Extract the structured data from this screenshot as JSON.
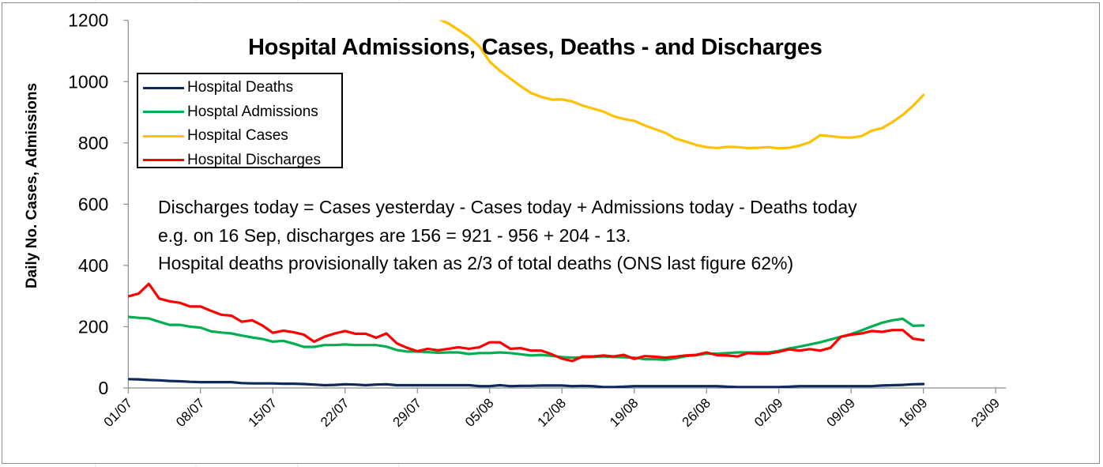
{
  "chart_data": {
    "type": "line",
    "title": "Hospital Admissions, Cases, Deaths - and Discharges",
    "xlabel": "",
    "ylabel": "Daily No. Cases, Admissions",
    "ylim": [
      0,
      1200
    ],
    "yticks": [
      0,
      200,
      400,
      600,
      800,
      1000,
      1200
    ],
    "xlim_days": [
      0,
      85
    ],
    "x_start_label": "01/07",
    "xtick_days": [
      0,
      7,
      14,
      21,
      28,
      35,
      42,
      49,
      56,
      63,
      70,
      77,
      84
    ],
    "xtick_labels": [
      "01/07",
      "08/07",
      "15/07",
      "22/07",
      "29/07",
      "05/08",
      "12/08",
      "19/08",
      "26/08",
      "02/09",
      "09/09",
      "16/09",
      "23/09"
    ],
    "grid": false,
    "legend_position": "top-left",
    "series": [
      {
        "name": "Hospital Deaths",
        "color": "#0e2a5c",
        "values": [
          29,
          28,
          26,
          25,
          23,
          22,
          20,
          19,
          19,
          19,
          19,
          16,
          15,
          15,
          15,
          14,
          14,
          13,
          11,
          9,
          10,
          12,
          11,
          9,
          11,
          12,
          9,
          9,
          9,
          9,
          9,
          9,
          9,
          9,
          6,
          6,
          9,
          6,
          7,
          7,
          8,
          8,
          8,
          6,
          7,
          6,
          3,
          3,
          4,
          6,
          6,
          6,
          6,
          6,
          6,
          6,
          6,
          6,
          4,
          3,
          3,
          3,
          3,
          3,
          4,
          6,
          6,
          6,
          6,
          6,
          6,
          6,
          6,
          8,
          9,
          10,
          12,
          13
        ]
      },
      {
        "name": "Hosptal Admissions",
        "color": "#00b050",
        "values": [
          232,
          229,
          227,
          216,
          206,
          206,
          200,
          197,
          185,
          181,
          178,
          171,
          165,
          160,
          151,
          154,
          145,
          134,
          134,
          140,
          140,
          142,
          140,
          140,
          140,
          135,
          124,
          119,
          119,
          117,
          115,
          116,
          116,
          111,
          114,
          114,
          116,
          114,
          110,
          106,
          108,
          105,
          101,
          99,
          100,
          101,
          103,
          101,
          100,
          99,
          94,
          94,
          92,
          97,
          104,
          107,
          112,
          112,
          114,
          116,
          116,
          116,
          116,
          121,
          129,
          135,
          142,
          149,
          158,
          167,
          176,
          188,
          201,
          213,
          221,
          226,
          203,
          204
        ]
      },
      {
        "name": "Hospital Cases",
        "color": "#ffc000",
        "values": [
          null,
          null,
          null,
          null,
          null,
          null,
          null,
          null,
          null,
          null,
          null,
          null,
          null,
          null,
          null,
          null,
          null,
          null,
          null,
          null,
          null,
          null,
          null,
          null,
          null,
          null,
          null,
          null,
          null,
          null,
          1205,
          1190,
          1168,
          1145,
          1115,
          1065,
          1035,
          1010,
          985,
          963,
          950,
          941,
          942,
          935,
          922,
          912,
          902,
          887,
          878,
          872,
          857,
          845,
          833,
          814,
          804,
          793,
          786,
          783,
          787,
          786,
          783,
          784,
          786,
          782,
          784,
          791,
          802,
          825,
          822,
          818,
          817,
          822,
          840,
          848,
          868,
          891,
          921,
          956
        ]
      },
      {
        "name": "Hospital Discharges",
        "color": "#ff0000",
        "values": [
          299,
          308,
          340,
          292,
          283,
          278,
          266,
          266,
          252,
          239,
          236,
          216,
          221,
          204,
          180,
          187,
          182,
          174,
          151,
          167,
          178,
          186,
          177,
          177,
          164,
          178,
          146,
          131,
          120,
          128,
          123,
          128,
          133,
          128,
          133,
          149,
          149,
          128,
          130,
          122,
          122,
          110,
          96,
          88,
          103,
          103,
          106,
          103,
          108,
          95,
          104,
          102,
          99,
          102,
          106,
          108,
          116,
          107,
          106,
          103,
          114,
          112,
          112,
          118,
          126,
          122,
          127,
          122,
          131,
          167,
          174,
          178,
          186,
          183,
          189,
          189,
          161,
          156
        ]
      }
    ],
    "annotations": [
      "Discharges today = Cases yesterday - Cases today + Admissions today - Deaths today",
      "e.g. on 16 Sep, discharges are 156 = 921 - 956 + 204 - 13.",
      "Hospital deaths provisionally taken as 2/3 of total deaths (ONS last figure 62%)"
    ]
  }
}
